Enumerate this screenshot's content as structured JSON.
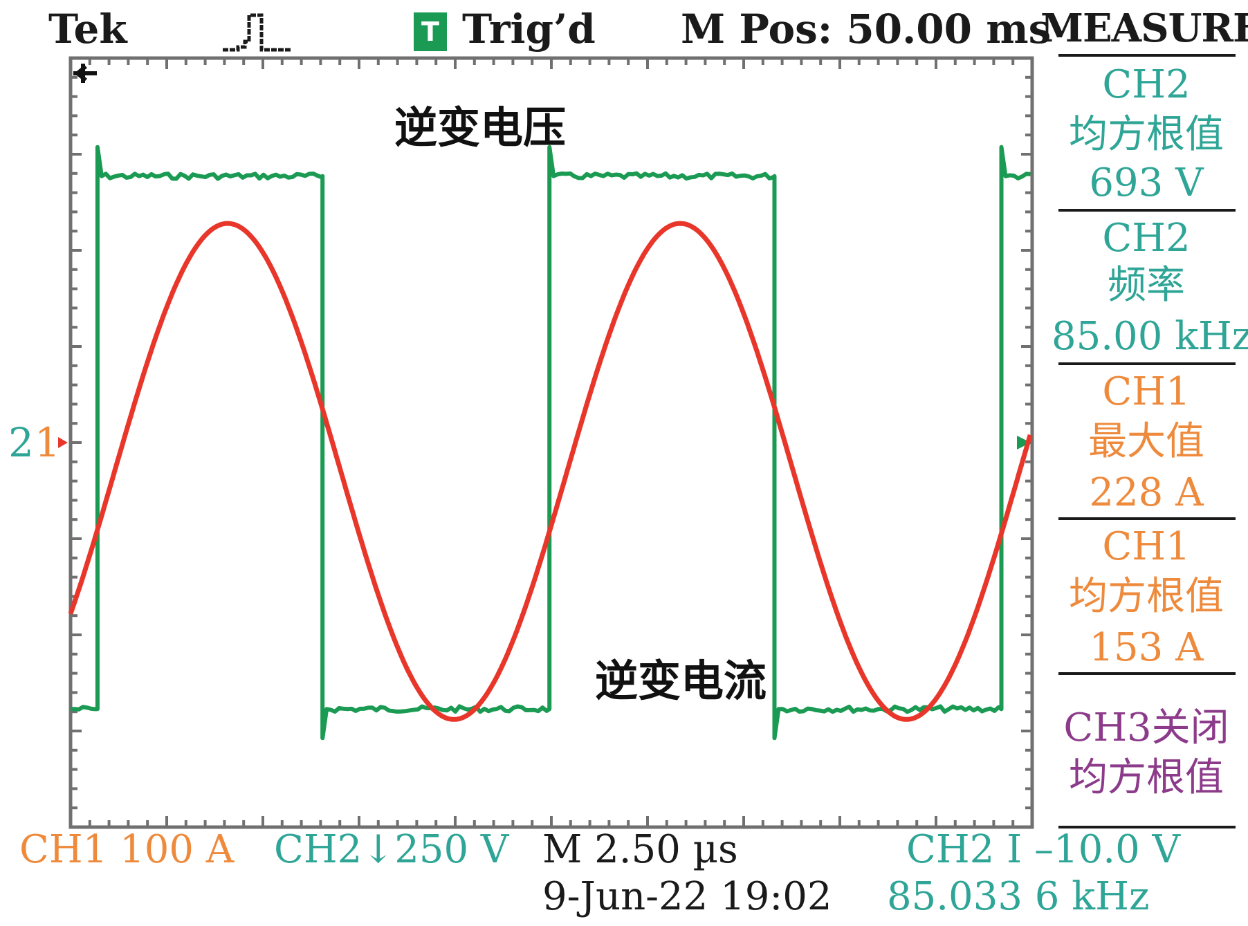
{
  "header": {
    "brand": "Tek",
    "trigger_badge": "T",
    "trigger_status": "Trig’d",
    "m_pos": "M Pos: 50.00 ms",
    "menu": "MEASURE"
  },
  "measurements": [
    {
      "channel": "CH2",
      "name": "均方根值",
      "value": "693 V",
      "color": "#2ea596"
    },
    {
      "channel": "CH2",
      "name": "频率",
      "value": "85.00 kHz",
      "color": "#2ea596"
    },
    {
      "channel": "CH1",
      "name": "最大值",
      "value": "228 A",
      "color": "#ee8a3c"
    },
    {
      "channel": "CH1",
      "name": "均方根值",
      "value": "153 A",
      "color": "#ee8a3c"
    },
    {
      "channel": "CH3关闭",
      "name": "均方根值",
      "value": "",
      "color": "#8c3a8a"
    }
  ],
  "footer": {
    "ch1_scale": "CH1 100 A",
    "ch2_scale": "CH2↓250 V",
    "timebase": "M 2.50 µs",
    "datetime": "9-Jun-22 19:02",
    "trigger": "CH2 I –10.0 V",
    "trigger_freq": "85.033 6 kHz"
  },
  "annotations": {
    "voltage_label": "逆变电压",
    "current_label": "逆变电流",
    "marker_2": "2",
    "marker_1": "1"
  },
  "colors": {
    "ch1_current": "#e8372a",
    "ch2_voltage": "#1a9a52",
    "teal_text": "#2ea596",
    "orange_text": "#ee8a3c",
    "purple_text": "#8c3a8a",
    "graticule": "#707070"
  },
  "chart_data": {
    "type": "line",
    "title": "",
    "xlabel": "",
    "ylabel": "",
    "x_unit": "µs",
    "x_per_div": 2.5,
    "x_divisions": 10,
    "xlim": [
      0,
      25
    ],
    "grid": false,
    "series": [
      {
        "name": "CH1",
        "unit": "A",
        "per_div": 100,
        "shape": "sine",
        "peak": 228,
        "rms": 153,
        "frequency_khz": 85.0,
        "offset_a": -30,
        "phase_deg": -35,
        "color": "#e8372a"
      },
      {
        "name": "CH2",
        "unit": "V",
        "per_div": 250,
        "shape": "square",
        "rms": 693,
        "high": 693,
        "low": -693,
        "frequency_khz": 85.0,
        "rising_edges_us": [
          0.7,
          12.45,
          24.2
        ],
        "falling_edges_us": [
          6.55,
          18.3
        ],
        "color": "#1a9a52"
      }
    ]
  }
}
